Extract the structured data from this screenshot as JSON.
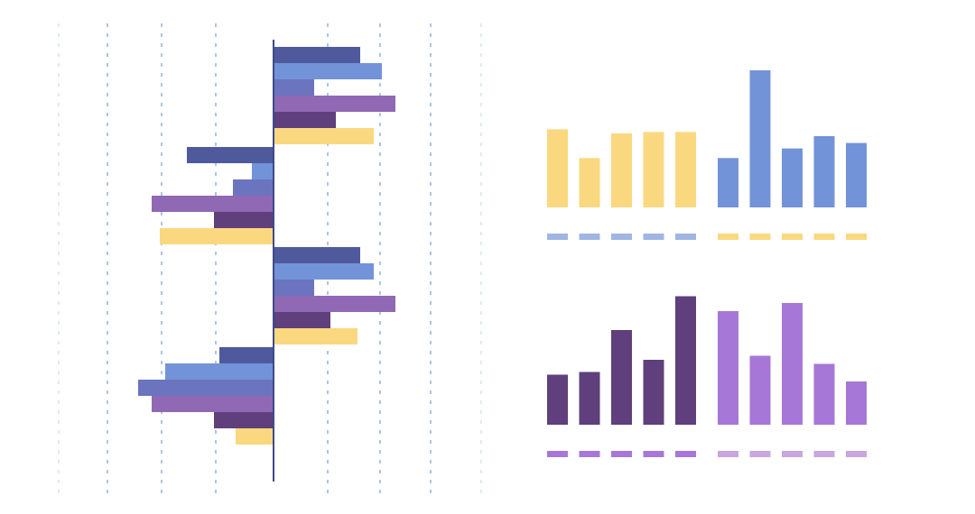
{
  "colors": {
    "background": "#ffffff",
    "grid": "#8fb3dd",
    "grid_faint": "#d7e2ee",
    "axis": "#3f4a8a",
    "navy": "#4f5a9c",
    "cornflower": "#7393d8",
    "slate_blue": "#6b74be",
    "lavender": "#8f69b3",
    "plum": "#5f3f7c",
    "gold": "#fad880",
    "light_blue": "#9fb6e3",
    "violet": "#a777d7",
    "pale_violet": "#c8a7dc"
  },
  "chart_data": [
    {
      "type": "bar",
      "orientation": "horizontal",
      "grid": true,
      "xlim": [
        -4,
        4
      ],
      "groups": [
        {
          "values": [
            1.6,
            2.0,
            0.75,
            2.25,
            1.15,
            1.85
          ]
        },
        {
          "values": [
            -1.6,
            -0.4,
            -0.75,
            -2.25,
            -1.1,
            -2.1
          ]
        },
        {
          "values": [
            1.6,
            1.85,
            0.75,
            2.25,
            1.05,
            1.55
          ]
        },
        {
          "values": [
            -1.0,
            -2.0,
            -2.5,
            -2.25,
            -1.1,
            -0.7
          ]
        }
      ],
      "series_colors": [
        "#4f5a9c",
        "#7393d8",
        "#6b74be",
        "#8f69b3",
        "#5f3f7c",
        "#fad880"
      ]
    },
    {
      "type": "bar",
      "values": [
        5.7,
        3.6,
        5.4,
        5.5,
        5.5
      ],
      "color": "#fad880",
      "ylim": [
        0,
        10
      ],
      "marker_color": "#9fb6e3"
    },
    {
      "type": "bar",
      "values": [
        3.6,
        10.0,
        4.3,
        5.2,
        4.7
      ],
      "color": "#7393d8",
      "ylim": [
        0,
        10
      ],
      "marker_color": "#fad880"
    },
    {
      "type": "bar",
      "values": [
        3.7,
        3.9,
        7.0,
        4.8,
        9.5
      ],
      "color": "#5f3f7c",
      "ylim": [
        0,
        10
      ],
      "marker_color": "#a777d7"
    },
    {
      "type": "bar",
      "values": [
        8.4,
        5.1,
        9.0,
        4.5,
        3.2
      ],
      "color": "#a777d7",
      "ylim": [
        0,
        10
      ],
      "marker_color": "#c8a7dc"
    }
  ]
}
